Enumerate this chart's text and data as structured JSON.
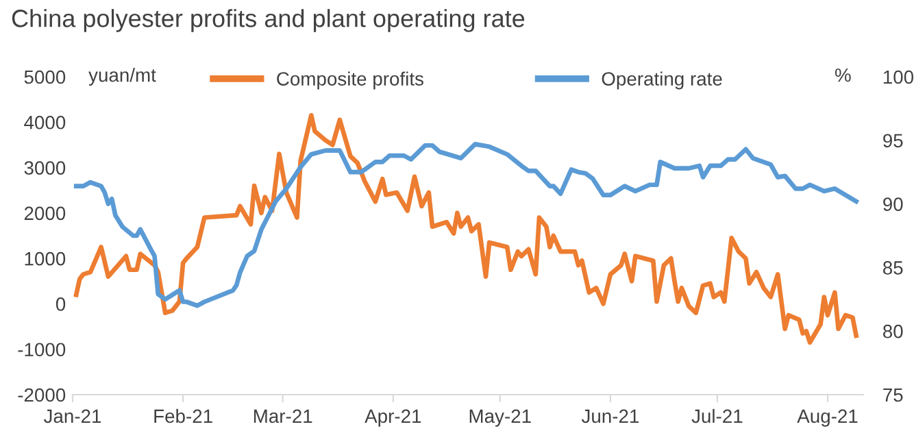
{
  "chart_data": {
    "type": "line",
    "title": "China polyester profits and plant operating rate",
    "ylabel": "yuan/mt",
    "y2label": "%",
    "xlim": [
      "2021-01-01",
      "2021-08-11"
    ],
    "xticks": [
      {
        "value": "2021-01-01",
        "label": "Jan-21"
      },
      {
        "value": "2021-02-01",
        "label": "Feb-21"
      },
      {
        "value": "2021-03-01",
        "label": "Mar-21"
      },
      {
        "value": "2021-04-01",
        "label": "Apr-21"
      },
      {
        "value": "2021-05-01",
        "label": "May-21"
      },
      {
        "value": "2021-06-01",
        "label": "Jun-21"
      },
      {
        "value": "2021-07-01",
        "label": "Jul-21"
      },
      {
        "value": "2021-08-01",
        "label": "Aug-21"
      }
    ],
    "ylim": [
      -2000,
      5000
    ],
    "yticks": [
      -2000,
      -1000,
      0,
      1000,
      2000,
      3000,
      4000,
      5000
    ],
    "y2lim": [
      75,
      100
    ],
    "y2ticks": [
      75,
      80,
      85,
      90,
      95,
      100
    ],
    "grid": false,
    "legend": "top",
    "marker": "none",
    "line_style": "solid",
    "series": [
      {
        "name": "Composite profits",
        "color": "#ed7d31",
        "x": [
          "2021-01-02",
          "2021-01-03",
          "2021-01-04",
          "2021-01-06",
          "2021-01-09",
          "2021-01-11",
          "2021-01-16",
          "2021-01-17",
          "2021-01-19",
          "2021-01-20",
          "2021-01-24",
          "2021-01-25",
          "2021-01-27",
          "2021-01-29",
          "2021-01-31",
          "2021-02-01",
          "2021-02-02",
          "2021-02-05",
          "2021-02-07",
          "2021-02-16",
          "2021-02-17",
          "2021-02-20",
          "2021-02-21",
          "2021-02-23",
          "2021-02-24",
          "2021-02-26",
          "2021-02-28",
          "2021-03-02",
          "2021-03-05",
          "2021-03-06",
          "2021-03-09",
          "2021-03-10",
          "2021-03-13",
          "2021-03-15",
          "2021-03-17",
          "2021-03-20",
          "2021-03-22",
          "2021-03-24",
          "2021-03-27",
          "2021-03-29",
          "2021-03-30",
          "2021-04-02",
          "2021-04-05",
          "2021-04-07",
          "2021-04-09",
          "2021-04-11",
          "2021-04-12",
          "2021-04-16",
          "2021-04-18",
          "2021-04-19",
          "2021-04-20",
          "2021-04-22",
          "2021-04-23",
          "2021-04-25",
          "2021-04-27",
          "2021-04-28",
          "2021-05-03",
          "2021-05-04",
          "2021-05-06",
          "2021-05-07",
          "2021-05-09",
          "2021-05-11",
          "2021-05-12",
          "2021-05-14",
          "2021-05-15",
          "2021-05-16",
          "2021-05-18",
          "2021-05-22",
          "2021-05-23",
          "2021-05-24",
          "2021-05-26",
          "2021-05-28",
          "2021-05-30",
          "2021-06-01",
          "2021-06-04",
          "2021-06-05",
          "2021-06-07",
          "2021-06-08",
          "2021-06-13",
          "2021-06-14",
          "2021-06-16",
          "2021-06-18",
          "2021-06-19",
          "2021-06-20",
          "2021-06-21",
          "2021-06-23",
          "2021-06-25",
          "2021-06-27",
          "2021-06-29",
          "2021-06-30",
          "2021-07-02",
          "2021-07-03",
          "2021-07-05",
          "2021-07-07",
          "2021-07-09",
          "2021-07-10",
          "2021-07-12",
          "2021-07-14",
          "2021-07-16",
          "2021-07-18",
          "2021-07-20",
          "2021-07-21",
          "2021-07-24",
          "2021-07-25",
          "2021-07-26",
          "2021-07-27",
          "2021-07-30",
          "2021-07-31",
          "2021-08-01",
          "2021-08-03",
          "2021-08-04",
          "2021-08-06",
          "2021-08-08",
          "2021-08-09"
        ],
        "values": [
          200,
          550,
          650,
          700,
          1250,
          600,
          1050,
          750,
          750,
          1100,
          850,
          700,
          -200,
          -150,
          50,
          900,
          1000,
          1250,
          1900,
          1950,
          2150,
          1750,
          2600,
          2000,
          2350,
          2050,
          3300,
          2450,
          1900,
          3150,
          4150,
          3800,
          3600,
          3500,
          4050,
          3250,
          3100,
          2700,
          2250,
          2750,
          2400,
          2450,
          2050,
          2800,
          2150,
          2450,
          1700,
          1800,
          1550,
          2000,
          1700,
          1900,
          1600,
          1750,
          600,
          1350,
          1250,
          750,
          1150,
          1050,
          1200,
          650,
          1900,
          1700,
          1250,
          1500,
          1150,
          1150,
          850,
          950,
          250,
          350,
          0,
          650,
          850,
          1100,
          500,
          1050,
          950,
          50,
          850,
          1000,
          500,
          50,
          350,
          -50,
          -200,
          400,
          450,
          150,
          250,
          50,
          1450,
          1150,
          1000,
          450,
          700,
          350,
          150,
          650,
          -550,
          -250,
          -350,
          -650,
          -600,
          -850,
          -450,
          150,
          -250,
          250,
          -550,
          -250,
          -300,
          -700
        ]
      },
      {
        "name": "Operating rate",
        "color": "#5b9bd5",
        "axis": "y2",
        "x": [
          "2021-01-02",
          "2021-01-04",
          "2021-01-06",
          "2021-01-09",
          "2021-01-10",
          "2021-01-11",
          "2021-01-12",
          "2021-01-13",
          "2021-01-15",
          "2021-01-18",
          "2021-01-19",
          "2021-01-20",
          "2021-01-23",
          "2021-01-24",
          "2021-01-25",
          "2021-01-27",
          "2021-01-31",
          "2021-02-01",
          "2021-02-02",
          "2021-02-05",
          "2021-02-07",
          "2021-02-15",
          "2021-02-16",
          "2021-02-17",
          "2021-02-19",
          "2021-02-21",
          "2021-02-23",
          "2021-02-27",
          "2021-03-02",
          "2021-03-06",
          "2021-03-09",
          "2021-03-13",
          "2021-03-17",
          "2021-03-20",
          "2021-03-23",
          "2021-03-27",
          "2021-03-29",
          "2021-03-31",
          "2021-04-04",
          "2021-04-06",
          "2021-04-10",
          "2021-04-12",
          "2021-04-14",
          "2021-04-20",
          "2021-04-24",
          "2021-04-28",
          "2021-05-03",
          "2021-05-07",
          "2021-05-09",
          "2021-05-11",
          "2021-05-15",
          "2021-05-16",
          "2021-05-18",
          "2021-05-21",
          "2021-05-23",
          "2021-05-25",
          "2021-05-27",
          "2021-05-30",
          "2021-06-01",
          "2021-06-05",
          "2021-06-08",
          "2021-06-12",
          "2021-06-14",
          "2021-06-15",
          "2021-06-19",
          "2021-06-23",
          "2021-06-26",
          "2021-06-27",
          "2021-06-29",
          "2021-07-02",
          "2021-07-04",
          "2021-07-06",
          "2021-07-09",
          "2021-07-11",
          "2021-07-16",
          "2021-07-18",
          "2021-07-20",
          "2021-07-23",
          "2021-07-25",
          "2021-07-27",
          "2021-07-31",
          "2021-08-03",
          "2021-08-06",
          "2021-08-09"
        ],
        "values": [
          91.4,
          91.4,
          91.7,
          91.4,
          90.9,
          90.0,
          90.4,
          89.1,
          88.2,
          87.5,
          87.5,
          88.0,
          86.4,
          85.9,
          82.9,
          82.5,
          83.2,
          82.3,
          82.3,
          82.0,
          82.3,
          83.2,
          83.6,
          84.6,
          85.9,
          86.3,
          88.0,
          90.2,
          91.2,
          92.9,
          93.9,
          94.2,
          94.2,
          92.5,
          92.5,
          93.3,
          93.3,
          93.8,
          93.8,
          93.5,
          94.6,
          94.6,
          94.1,
          93.6,
          94.7,
          94.5,
          93.9,
          93.0,
          92.6,
          92.6,
          91.4,
          91.4,
          90.8,
          92.7,
          92.5,
          92.4,
          92.0,
          90.7,
          90.7,
          91.4,
          91.0,
          91.5,
          91.5,
          93.3,
          92.8,
          92.8,
          93.0,
          92.1,
          93.0,
          93.0,
          93.5,
          93.5,
          94.3,
          93.6,
          93.1,
          92.1,
          92.2,
          91.2,
          91.2,
          91.5,
          91.0,
          91.2,
          90.7,
          90.2
        ]
      }
    ]
  }
}
